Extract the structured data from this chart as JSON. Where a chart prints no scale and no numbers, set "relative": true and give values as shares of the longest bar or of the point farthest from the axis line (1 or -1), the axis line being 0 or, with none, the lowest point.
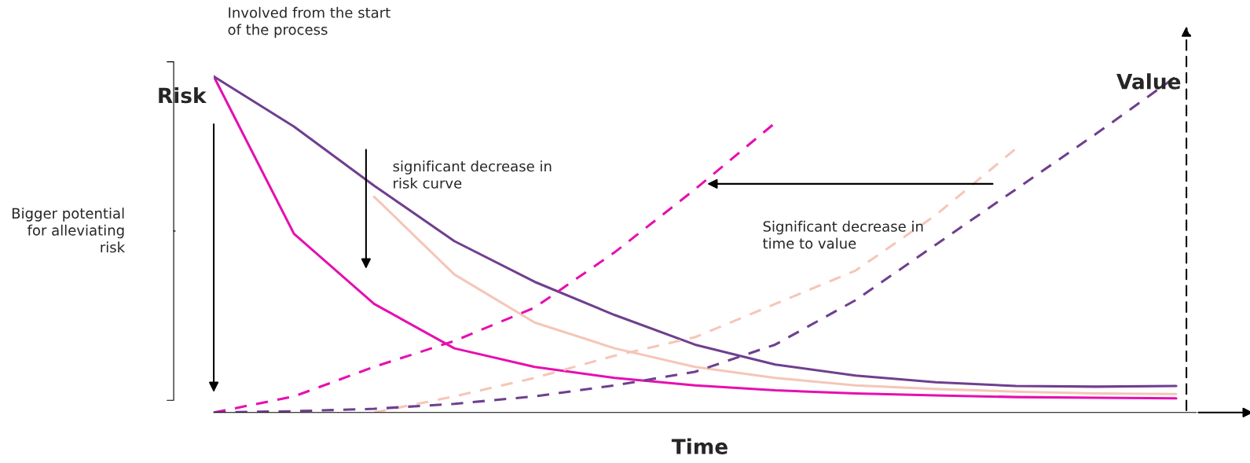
{
  "chart_data": {
    "type": "line",
    "relative": true,
    "xlabel": "Time",
    "ylabel": "Risk",
    "y2label": "Value",
    "categories": [
      null,
      null,
      null,
      null,
      null,
      null,
      null,
      null,
      null,
      null,
      null,
      null,
      null
    ],
    "series": [
      {
        "color": "#e60fb0",
        "line_style": "solid",
        "values": [
          1.0,
          0.532,
          0.323,
          0.191,
          0.136,
          0.103,
          0.081,
          0.066,
          0.057,
          0.051,
          0.046,
          0.044,
          0.042
        ]
      },
      {
        "color": "#f5c6b8",
        "line_style": "solid",
        "values": [
          null,
          null,
          0.642,
          0.411,
          0.268,
          0.191,
          0.136,
          0.103,
          0.081,
          0.07,
          0.062,
          0.057,
          0.055
        ]
      },
      {
        "color": "#6f3f8f",
        "line_style": "solid",
        "values": [
          1.0,
          0.851,
          0.675,
          0.51,
          0.389,
          0.29,
          0.202,
          0.143,
          0.11,
          0.09,
          0.079,
          0.077,
          0.079
        ]
      },
      {
        "color": "#e60fb0",
        "line_style": "dashed",
        "values": [
          0.0,
          0.048,
          0.136,
          0.213,
          0.312,
          0.477,
          0.664,
          0.862,
          null,
          null,
          null,
          null,
          null
        ]
      },
      {
        "color": "#f5c6b8",
        "line_style": "dashed",
        "values": [
          null,
          null,
          0.0,
          0.048,
          0.103,
          0.169,
          0.224,
          0.323,
          0.422,
          0.587,
          0.785,
          null,
          null
        ]
      },
      {
        "color": "#6f3f8f",
        "line_style": "dashed",
        "values": [
          0.0,
          0.004,
          0.011,
          0.026,
          0.048,
          0.081,
          0.121,
          0.202,
          0.334,
          0.499,
          0.664,
          0.829,
          1.0
        ]
      }
    ],
    "annotations": [
      "Involved from the start of the process",
      "Bigger potential for alleviating risk",
      "significant decrease in risk curve",
      "Significant decrease in time to value"
    ],
    "grid": false,
    "legend": false,
    "marker": "none"
  }
}
